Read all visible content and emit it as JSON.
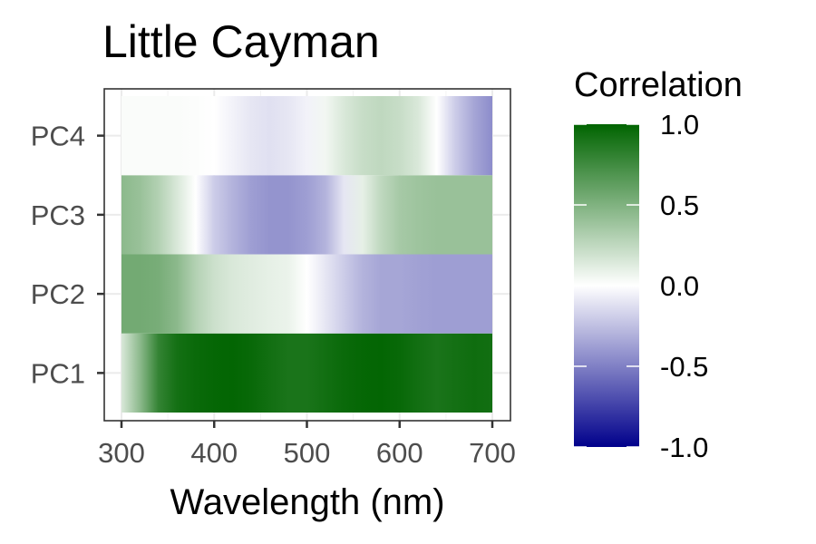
{
  "chart_data": {
    "type": "heatmap",
    "title": "Little Cayman",
    "xlabel": "Wavelength (nm)",
    "ylabel": "",
    "xlim": [
      300,
      700
    ],
    "x_ticks": [
      300,
      400,
      500,
      600,
      700
    ],
    "rows": [
      "PC1",
      "PC2",
      "PC3",
      "PC4"
    ],
    "series": [
      {
        "name": "PC1",
        "x": [
          300,
          320,
          340,
          360,
          380,
          400,
          420,
          440,
          460,
          480,
          500,
          520,
          540,
          560,
          580,
          600,
          620,
          640,
          660,
          680,
          700
        ],
        "values": [
          0.15,
          0.45,
          0.8,
          0.92,
          0.96,
          0.98,
          0.99,
          0.97,
          0.93,
          0.9,
          0.9,
          0.93,
          0.96,
          0.98,
          0.99,
          0.97,
          0.93,
          0.9,
          0.92,
          0.94,
          0.93
        ]
      },
      {
        "name": "PC2",
        "x": [
          300,
          320,
          340,
          360,
          380,
          400,
          420,
          440,
          460,
          480,
          500,
          520,
          540,
          560,
          580,
          600,
          620,
          640,
          660,
          680,
          700
        ],
        "values": [
          0.55,
          0.55,
          0.53,
          0.45,
          0.3,
          0.2,
          0.15,
          0.12,
          0.1,
          0.08,
          0.0,
          -0.1,
          -0.2,
          -0.3,
          -0.35,
          -0.35,
          -0.37,
          -0.38,
          -0.38,
          -0.38,
          -0.38
        ]
      },
      {
        "name": "PC3",
        "x": [
          300,
          320,
          340,
          360,
          380,
          400,
          420,
          440,
          460,
          480,
          500,
          520,
          540,
          560,
          580,
          600,
          620,
          640,
          660,
          680,
          700
        ],
        "values": [
          0.45,
          0.4,
          0.3,
          0.15,
          0.0,
          -0.2,
          -0.3,
          -0.38,
          -0.42,
          -0.42,
          -0.38,
          -0.3,
          -0.1,
          0.1,
          0.25,
          0.35,
          0.38,
          0.4,
          0.4,
          0.4,
          0.4
        ]
      },
      {
        "name": "PC4",
        "x": [
          300,
          320,
          340,
          360,
          380,
          400,
          420,
          440,
          460,
          480,
          500,
          520,
          540,
          560,
          580,
          600,
          620,
          640,
          660,
          680,
          700
        ],
        "values": [
          0.02,
          0.02,
          0.02,
          0.02,
          0.01,
          0.0,
          -0.05,
          -0.1,
          -0.12,
          -0.1,
          -0.05,
          0.05,
          0.15,
          0.22,
          0.25,
          0.22,
          0.15,
          0.0,
          -0.2,
          -0.35,
          -0.45
        ]
      }
    ],
    "legend": {
      "title": "Correlation",
      "placement": "right",
      "range": [
        -1.0,
        1.0
      ],
      "ticks": [
        "1.0",
        "0.5",
        "0.0",
        "-0.5",
        "-1.0"
      ],
      "colors": {
        "low": "#00008B",
        "mid": "#FFFFFF",
        "high": "#006400"
      }
    },
    "grid": true
  }
}
